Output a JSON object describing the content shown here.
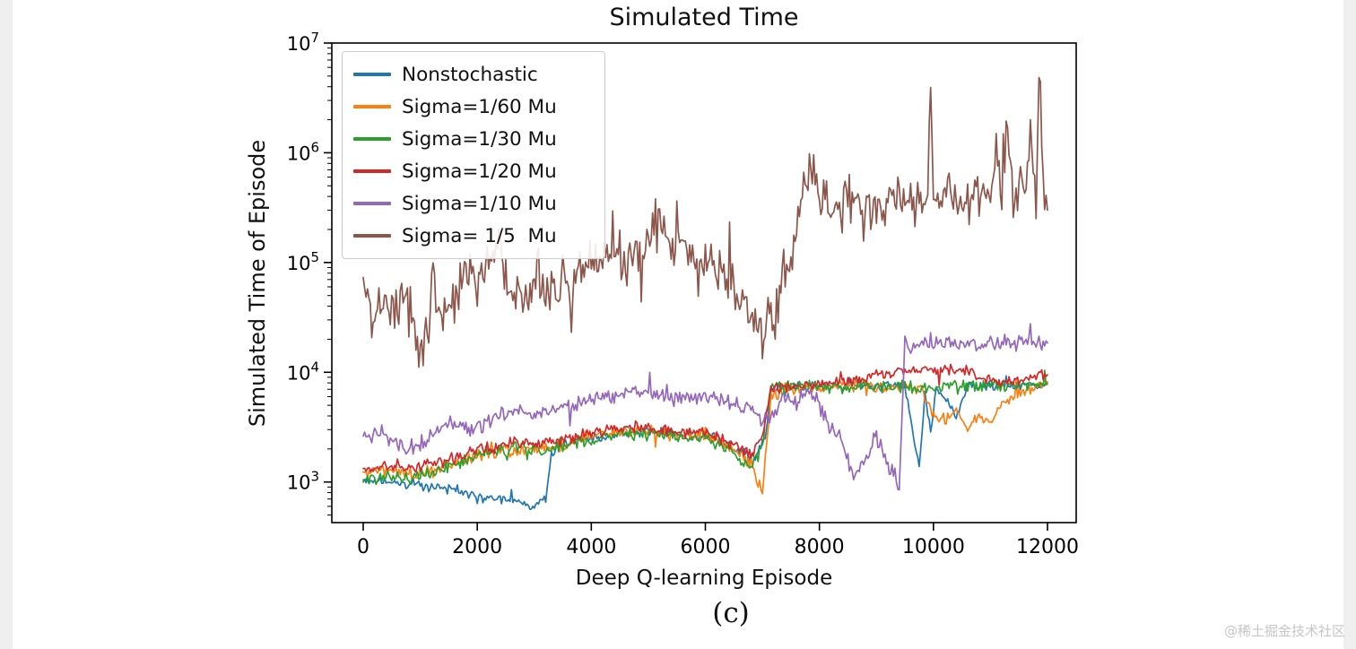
{
  "page": {
    "caption": "(c)",
    "watermark": "@稀土掘金技术社区"
  },
  "chart_data": {
    "type": "line",
    "title": "Simulated Time",
    "xlabel": "Deep Q-learning Episode",
    "ylabel": "Simulated Time of Episode",
    "x_ticks": [
      0,
      2000,
      4000,
      6000,
      8000,
      10000,
      12000
    ],
    "y_ticks_exponents": [
      3,
      4,
      5,
      6,
      7
    ],
    "xlim": [
      -550,
      12550
    ],
    "ylim_log10": [
      2.63,
      7
    ],
    "y_scale": "log",
    "grid": false,
    "legend_position": "upper left",
    "series": [
      {
        "name": "Nonstochastic",
        "color": "#1f77b4",
        "noise": 0.05,
        "points": [
          [
            0,
            1050
          ],
          [
            400,
            1000
          ],
          [
            800,
            950
          ],
          [
            1200,
            900
          ],
          [
            1600,
            850
          ],
          [
            2000,
            760
          ],
          [
            2400,
            700
          ],
          [
            2800,
            640
          ],
          [
            3000,
            600
          ],
          [
            3200,
            680
          ],
          [
            3300,
            1800
          ],
          [
            3450,
            2300
          ],
          [
            3800,
            2400
          ],
          [
            4200,
            2600
          ],
          [
            4600,
            2800
          ],
          [
            5000,
            2900
          ],
          [
            5400,
            2750
          ],
          [
            5800,
            2600
          ],
          [
            6200,
            2500
          ],
          [
            6600,
            1900
          ],
          [
            6900,
            1700
          ],
          [
            7050,
            2500
          ],
          [
            7150,
            7000
          ],
          [
            7500,
            7400
          ],
          [
            8000,
            7500
          ],
          [
            8500,
            7500
          ],
          [
            9000,
            7500
          ],
          [
            9500,
            7500
          ],
          [
            9750,
            1300
          ],
          [
            9850,
            6500
          ],
          [
            9950,
            2800
          ],
          [
            10050,
            7200
          ],
          [
            10400,
            4000
          ],
          [
            10600,
            7500
          ],
          [
            11000,
            7500
          ],
          [
            11400,
            7500
          ],
          [
            11800,
            7600
          ],
          [
            12000,
            8000
          ]
        ]
      },
      {
        "name": "Sigma=1/60 Mu",
        "color": "#ff7f0e",
        "noise": 0.07,
        "points": [
          [
            0,
            1200
          ],
          [
            400,
            1300
          ],
          [
            800,
            1150
          ],
          [
            1200,
            1250
          ],
          [
            1600,
            1450
          ],
          [
            2000,
            1700
          ],
          [
            2400,
            1900
          ],
          [
            2800,
            2000
          ],
          [
            3200,
            2100
          ],
          [
            3600,
            2250
          ],
          [
            4000,
            2600
          ],
          [
            4400,
            2800
          ],
          [
            4800,
            3000
          ],
          [
            5200,
            2850
          ],
          [
            5600,
            2650
          ],
          [
            6000,
            2750
          ],
          [
            6400,
            2100
          ],
          [
            6800,
            1500
          ],
          [
            7000,
            800
          ],
          [
            7150,
            6000
          ],
          [
            7400,
            7000
          ],
          [
            7800,
            7300
          ],
          [
            8200,
            7500
          ],
          [
            8600,
            7500
          ],
          [
            9000,
            7500
          ],
          [
            9400,
            7500
          ],
          [
            9800,
            7000
          ],
          [
            10000,
            4000
          ],
          [
            10200,
            3400
          ],
          [
            10400,
            4600
          ],
          [
            10600,
            3000
          ],
          [
            10800,
            4200
          ],
          [
            11000,
            3400
          ],
          [
            11200,
            5000
          ],
          [
            11500,
            6500
          ],
          [
            11800,
            7500
          ],
          [
            12000,
            8200
          ]
        ]
      },
      {
        "name": "Sigma=1/30 Mu",
        "color": "#2ca02c",
        "noise": 0.07,
        "points": [
          [
            0,
            1050
          ],
          [
            400,
            1150
          ],
          [
            800,
            1050
          ],
          [
            1200,
            1250
          ],
          [
            1600,
            1450
          ],
          [
            2000,
            1750
          ],
          [
            2400,
            1950
          ],
          [
            2800,
            2050
          ],
          [
            3200,
            2000
          ],
          [
            3600,
            2250
          ],
          [
            4000,
            2450
          ],
          [
            4400,
            2650
          ],
          [
            4800,
            2750
          ],
          [
            5200,
            2650
          ],
          [
            5600,
            2500
          ],
          [
            6000,
            2600
          ],
          [
            6400,
            2000
          ],
          [
            6800,
            1400
          ],
          [
            7000,
            2000
          ],
          [
            7150,
            7500
          ],
          [
            7500,
            7600
          ],
          [
            8000,
            7500
          ],
          [
            8500,
            7500
          ],
          [
            9000,
            7500
          ],
          [
            9500,
            7500
          ],
          [
            10000,
            7000
          ],
          [
            10500,
            7500
          ],
          [
            11000,
            7500
          ],
          [
            11500,
            7500
          ],
          [
            12000,
            7800
          ]
        ]
      },
      {
        "name": "Sigma=1/20 Mu",
        "color": "#d62728",
        "noise": 0.06,
        "points": [
          [
            0,
            1300
          ],
          [
            400,
            1400
          ],
          [
            800,
            1300
          ],
          [
            1200,
            1500
          ],
          [
            1600,
            1650
          ],
          [
            2000,
            2000
          ],
          [
            2400,
            2200
          ],
          [
            2800,
            2300
          ],
          [
            3200,
            2250
          ],
          [
            3600,
            2500
          ],
          [
            4000,
            2800
          ],
          [
            4400,
            3000
          ],
          [
            4800,
            3200
          ],
          [
            5200,
            3050
          ],
          [
            5600,
            2850
          ],
          [
            6000,
            2900
          ],
          [
            6400,
            2300
          ],
          [
            6800,
            1800
          ],
          [
            7000,
            2600
          ],
          [
            7150,
            7000
          ],
          [
            7500,
            7500
          ],
          [
            8000,
            7800
          ],
          [
            8500,
            8200
          ],
          [
            9000,
            9500
          ],
          [
            9500,
            10500
          ],
          [
            10000,
            10500
          ],
          [
            10500,
            10500
          ],
          [
            10800,
            9000
          ],
          [
            11200,
            8000
          ],
          [
            11600,
            8500
          ],
          [
            12000,
            9500
          ]
        ]
      },
      {
        "name": "Sigma=1/10 Mu",
        "color": "#9467bd",
        "noise": 0.09,
        "points": [
          [
            0,
            2500
          ],
          [
            300,
            2900
          ],
          [
            600,
            2200
          ],
          [
            900,
            2100
          ],
          [
            1200,
            2600
          ],
          [
            1500,
            3600
          ],
          [
            1800,
            3100
          ],
          [
            2100,
            3300
          ],
          [
            2400,
            4100
          ],
          [
            2700,
            4500
          ],
          [
            3000,
            4200
          ],
          [
            3300,
            4600
          ],
          [
            3600,
            5100
          ],
          [
            4000,
            5600
          ],
          [
            4400,
            6100
          ],
          [
            4800,
            6600
          ],
          [
            5200,
            6200
          ],
          [
            5600,
            5700
          ],
          [
            6000,
            6200
          ],
          [
            6400,
            5200
          ],
          [
            6800,
            4600
          ],
          [
            7000,
            3600
          ],
          [
            7200,
            4200
          ],
          [
            7400,
            6200
          ],
          [
            7600,
            5200
          ],
          [
            7800,
            7000
          ],
          [
            8000,
            5000
          ],
          [
            8200,
            3000
          ],
          [
            8400,
            2500
          ],
          [
            8600,
            1050
          ],
          [
            8800,
            1600
          ],
          [
            9000,
            2600
          ],
          [
            9200,
            1500
          ],
          [
            9400,
            850
          ],
          [
            9500,
            22000
          ],
          [
            9600,
            14000
          ],
          [
            9750,
            18500
          ],
          [
            10000,
            18000
          ],
          [
            10400,
            18500
          ],
          [
            10800,
            18000
          ],
          [
            11200,
            19000
          ],
          [
            11600,
            18000
          ],
          [
            12000,
            18500
          ]
        ]
      },
      {
        "name": "Sigma= 1/5  Mu",
        "color": "#8c564b",
        "noise": 0.28,
        "points": [
          [
            0,
            100000
          ],
          [
            150,
            22000
          ],
          [
            300,
            50000
          ],
          [
            500,
            30000
          ],
          [
            700,
            60000
          ],
          [
            900,
            25000
          ],
          [
            1050,
            12000
          ],
          [
            1200,
            60000
          ],
          [
            1400,
            35000
          ],
          [
            1600,
            45000
          ],
          [
            1800,
            80000
          ],
          [
            2000,
            60000
          ],
          [
            2200,
            110000
          ],
          [
            2400,
            140000
          ],
          [
            2600,
            60000
          ],
          [
            2800,
            45000
          ],
          [
            3000,
            80000
          ],
          [
            3200,
            70000
          ],
          [
            3400,
            55000
          ],
          [
            3600,
            65000
          ],
          [
            3800,
            90000
          ],
          [
            4000,
            85000
          ],
          [
            4200,
            110000
          ],
          [
            4400,
            120000
          ],
          [
            4600,
            95000
          ],
          [
            4800,
            105000
          ],
          [
            5000,
            160000
          ],
          [
            5200,
            200000
          ],
          [
            5400,
            150000
          ],
          [
            5600,
            160000
          ],
          [
            5800,
            120000
          ],
          [
            6000,
            100000
          ],
          [
            6200,
            80000
          ],
          [
            6400,
            65000
          ],
          [
            6600,
            50000
          ],
          [
            6800,
            30000
          ],
          [
            7000,
            16000
          ],
          [
            7100,
            35000
          ],
          [
            7200,
            25000
          ],
          [
            7300,
            60000
          ],
          [
            7500,
            120000
          ],
          [
            7700,
            400000
          ],
          [
            7900,
            800000
          ],
          [
            8000,
            400000
          ],
          [
            8200,
            350000
          ],
          [
            8400,
            300000
          ],
          [
            8600,
            400000
          ],
          [
            8800,
            350000
          ],
          [
            9000,
            400000
          ],
          [
            9200,
            300000
          ],
          [
            9400,
            380000
          ],
          [
            9600,
            350000
          ],
          [
            9800,
            400000
          ],
          [
            9900,
            450000
          ],
          [
            9950,
            7000000
          ],
          [
            10000,
            400000
          ],
          [
            10200,
            350000
          ],
          [
            10400,
            400000
          ],
          [
            10600,
            300000
          ],
          [
            10800,
            350000
          ],
          [
            11000,
            400000
          ],
          [
            11100,
            1500000
          ],
          [
            11200,
            400000
          ],
          [
            11300,
            2500000
          ],
          [
            11400,
            350000
          ],
          [
            11500,
            500000
          ],
          [
            11600,
            400000
          ],
          [
            11700,
            1500000
          ],
          [
            11800,
            350000
          ],
          [
            11850,
            6000000
          ],
          [
            11950,
            400000
          ],
          [
            12000,
            300000
          ]
        ]
      }
    ]
  }
}
